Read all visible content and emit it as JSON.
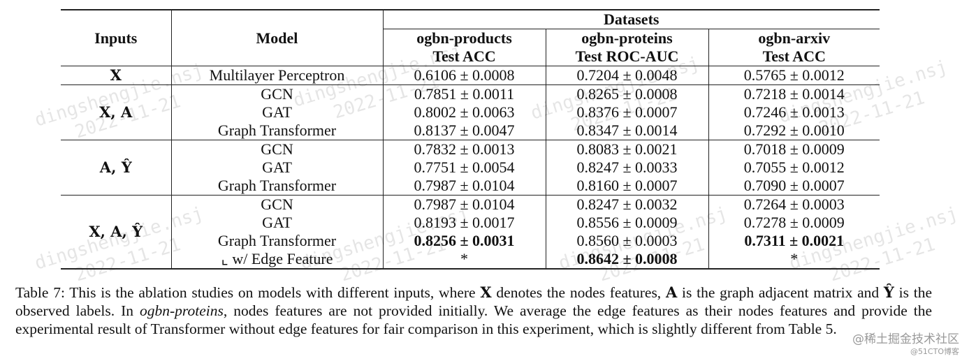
{
  "watermark": {
    "line1": "dingshengjie.nsj",
    "line2": "2022-11-21"
  },
  "table": {
    "headers": {
      "inputs": "Inputs",
      "model": "Model",
      "datasets": "Datasets",
      "d1_name": "ogbn-products",
      "d1_metric": "Test ACC",
      "d2_name": "ogbn-proteins",
      "d2_metric": "Test ROC-AUC",
      "d3_name": "ogbn-arxiv",
      "d3_metric": "Test ACC"
    },
    "groups": [
      {
        "inputs": "X",
        "rows": [
          {
            "model": "Multilayer Perceptron",
            "v1": "0.6106 ± 0.0008",
            "v2": "0.7204 ± 0.0048",
            "v3": "0.5765 ± 0.0012"
          }
        ]
      },
      {
        "inputs": "X, A",
        "rows": [
          {
            "model": "GCN",
            "v1": "0.7851 ± 0.0011",
            "v2": "0.8265 ± 0.0008",
            "v3": "0.7218 ± 0.0014"
          },
          {
            "model": "GAT",
            "v1": "0.8002 ± 0.0063",
            "v2": "0.8376 ± 0.0007",
            "v3": "0.7246 ± 0.0013"
          },
          {
            "model": "Graph Transformer",
            "v1": "0.8137 ± 0.0047",
            "v2": "0.8347 ± 0.0014",
            "v3": "0.7292 ± 0.0010"
          }
        ]
      },
      {
        "inputs": "A, Ŷ",
        "rows": [
          {
            "model": "GCN",
            "v1": "0.7832 ± 0.0013",
            "v2": "0.8083 ± 0.0021",
            "v3": "0.7018 ± 0.0009"
          },
          {
            "model": "GAT",
            "v1": "0.7751 ± 0.0054",
            "v2": "0.8247 ± 0.0033",
            "v3": "0.7055 ± 0.0012"
          },
          {
            "model": "Graph Transformer",
            "v1": "0.7987 ± 0.0104",
            "v2": "0.8160 ± 0.0007",
            "v3": "0.7090 ± 0.0007"
          }
        ]
      },
      {
        "inputs": "X, A, Ŷ",
        "rows": [
          {
            "model": "GCN",
            "v1": "0.7987 ± 0.0104",
            "v2": "0.8247 ± 0.0032",
            "v3": "0.7264 ± 0.0003"
          },
          {
            "model": "GAT",
            "v1": "0.8193 ± 0.0017",
            "v2": "0.8556 ± 0.0009",
            "v3": "0.7278 ± 0.0009"
          },
          {
            "model": "Graph Transformer",
            "v1": "0.8256 ± 0.0031",
            "v2": "0.8560 ± 0.0003",
            "v3": "0.7311 ±  0.0021"
          },
          {
            "model": "⌞ w/ Edge Feature",
            "v1": "*",
            "v2": "0.8642 ± 0.0008",
            "v3": "*"
          }
        ]
      }
    ]
  },
  "caption": {
    "p1": "Table 7: This is the ablation studies on models with different inputs, where ",
    "x": "X",
    "p2": " denotes the nodes features, ",
    "a": "A",
    "p3": " is the graph adjacent matrix and ",
    "y": "Ŷ",
    "p4": " is the observed labels. In ",
    "dataset": "ogbn-proteins",
    "p5": ", nodes features are not provided initially. We average the edge features as their nodes features and provide the experimental result of Transformer without edge features for fair comparison in this experiment, which is slightly different from Table 5."
  },
  "corner": {
    "line1": "@稀土掘金技术社区",
    "line2": "@51CTO博客"
  }
}
